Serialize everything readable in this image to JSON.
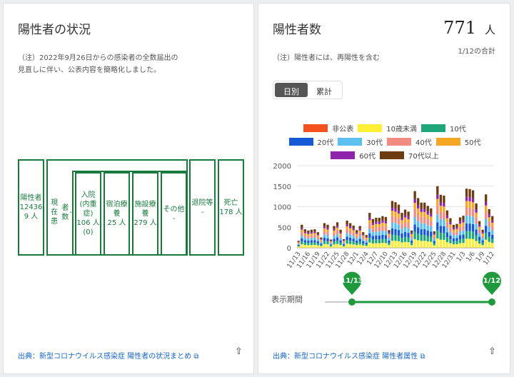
{
  "left": {
    "title": "陽性者の状況",
    "note_line1": "（注）2022年9月26日からの感染者の全数届出の",
    "note_line2": "見直しに伴い、公表内容を簡略化しました。",
    "boxes": {
      "positive": [
        "陽性者",
        "12436",
        "9 人"
      ],
      "current": [
        "現在患",
        "者数",
        "-"
      ],
      "hospital": [
        "入院",
        "(内重症)",
        "106 人",
        "(0)"
      ],
      "hotel": [
        "宿泊療",
        "養",
        "25 人"
      ],
      "facility": [
        "施設療",
        "養",
        "279 人"
      ],
      "other": [
        "その他",
        "-"
      ],
      "discharged": [
        "退院等",
        "-"
      ],
      "death": [
        "死亡",
        "178 人"
      ]
    },
    "source": "出典：新型コロナウイルス感染症 陽性者の状況まとめ"
  },
  "right": {
    "title": "陽性者数",
    "total": "771",
    "unit": "人",
    "total_caption": "1/12の合計",
    "note": "（注）陽性者には、再陽性を含む",
    "toggle": [
      {
        "label": "日別",
        "active": true
      },
      {
        "label": "累計",
        "active": false
      }
    ],
    "period_label": "表示期間",
    "range_start": "11/13",
    "range_end": "1/12",
    "source": "出典：新型コロナウイルス感染症 陽性者属性"
  },
  "icons": {
    "external": "external-link-icon",
    "share": "share-icon"
  },
  "chart_data": {
    "type": "bar",
    "stacked": true,
    "ylim": [
      0,
      2000
    ],
    "yticks": [
      "2000",
      "1500",
      "1000",
      "500",
      "0"
    ],
    "grid": true,
    "legend": "top",
    "dates": [
      "11/13",
      "11/14",
      "11/15",
      "11/16",
      "11/17",
      "11/18",
      "11/19",
      "11/20",
      "11/21",
      "11/22",
      "11/23",
      "11/24",
      "11/25",
      "11/26",
      "11/27",
      "11/28",
      "11/29",
      "11/30",
      "12/1",
      "12/2",
      "12/3",
      "12/4",
      "12/5",
      "12/6",
      "12/7",
      "12/8",
      "12/9",
      "12/10",
      "12/11",
      "12/12",
      "12/13",
      "12/14",
      "12/15",
      "12/16",
      "12/17",
      "12/18",
      "12/19",
      "12/20",
      "12/21",
      "12/22",
      "12/23",
      "12/24",
      "12/25",
      "12/26",
      "12/27",
      "12/28",
      "12/29",
      "12/30",
      "12/31",
      "1/1",
      "1/2",
      "1/3",
      "1/4",
      "1/5",
      "1/6",
      "1/7",
      "1/8",
      "1/9",
      "1/10",
      "1/11",
      "1/12"
    ],
    "xtick_labels": [
      "11/13",
      "11/16",
      "11/19",
      "11/22",
      "11/25",
      "11/28",
      "12/1",
      "12/4",
      "12/7",
      "12/10",
      "12/13",
      "12/16",
      "12/19",
      "12/22",
      "12/25",
      "12/28",
      "12/31",
      "1/3",
      "1/6",
      "1/9",
      "1/12"
    ],
    "totals": [
      170,
      560,
      450,
      420,
      440,
      450,
      380,
      250,
      600,
      560,
      200,
      530,
      620,
      440,
      210,
      660,
      600,
      540,
      430,
      530,
      380,
      310,
      850,
      700,
      730,
      730,
      770,
      750,
      430,
      1140,
      1110,
      1050,
      850,
      930,
      880,
      420,
      1380,
      1210,
      1100,
      1100,
      1020,
      960,
      400,
      1500,
      1290,
      1270,
      910,
      720,
      560,
      580,
      740,
      780,
      1440,
      1430,
      1400,
      1080,
      650,
      440,
      1300,
      940,
      771
    ],
    "series": [
      {
        "name": "非公表",
        "color": "#f4511e",
        "share": 0.002
      },
      {
        "name": "10歳未満",
        "color": "#ffee33",
        "share": 0.15
      },
      {
        "name": "10代",
        "color": "#1fa67a",
        "share": 0.13
      },
      {
        "name": "20代",
        "color": "#1558d6",
        "share": 0.13
      },
      {
        "name": "30代",
        "color": "#5bc0f0",
        "share": 0.13
      },
      {
        "name": "40代",
        "color": "#f28b82",
        "share": 0.14
      },
      {
        "name": "50代",
        "color": "#f5a623",
        "share": 0.11
      },
      {
        "name": "60代",
        "color": "#8e24aa",
        "share": 0.07
      },
      {
        "name": "70代以上",
        "color": "#6d3b12",
        "share": 0.138
      }
    ]
  }
}
